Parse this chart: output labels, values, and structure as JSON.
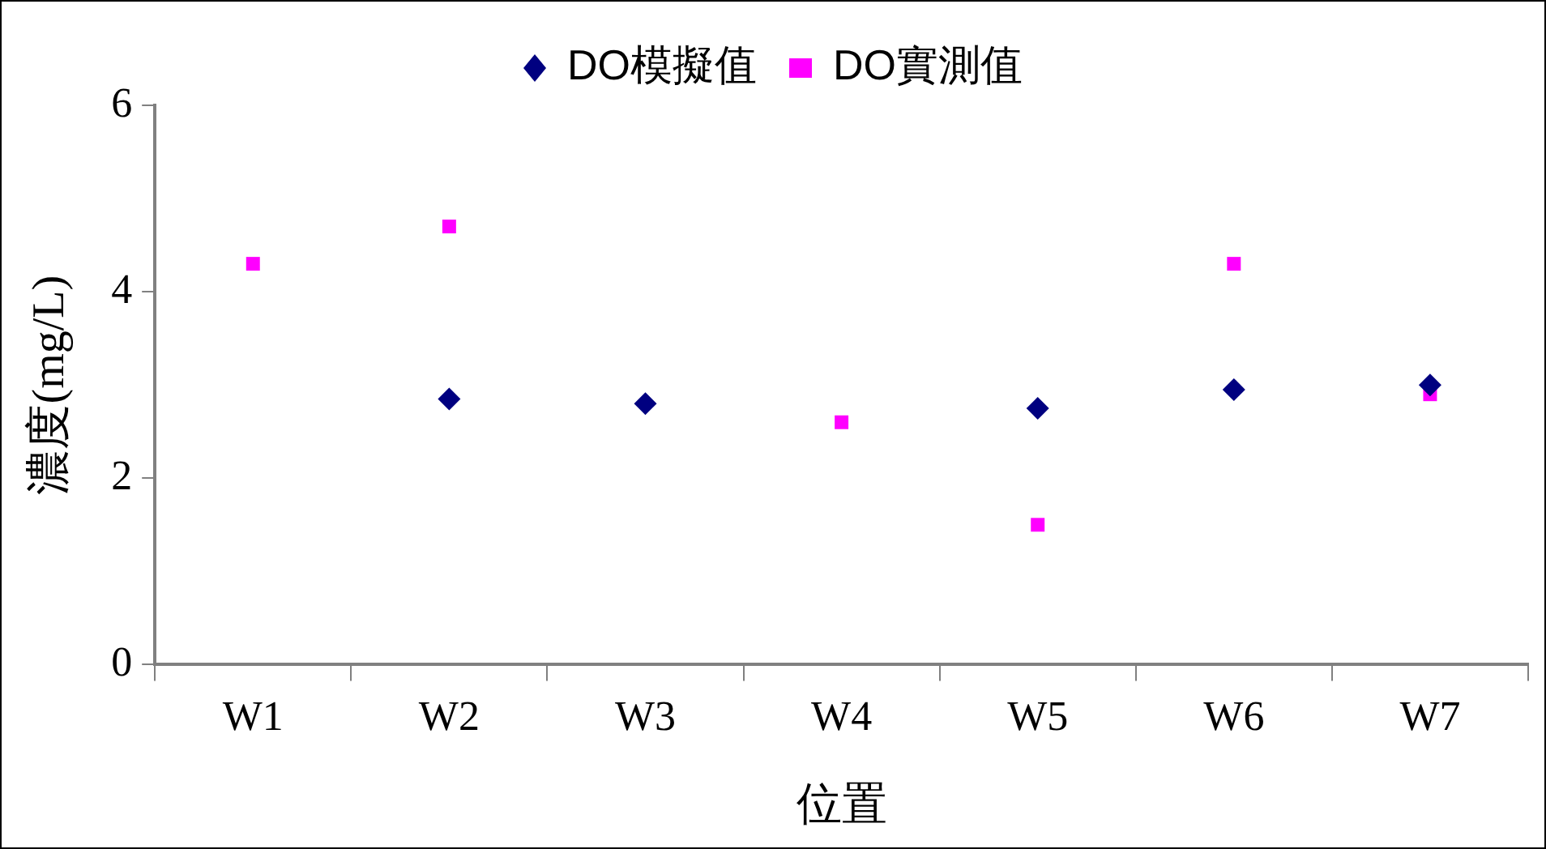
{
  "chart_data": {
    "type": "scatter",
    "xlabel": "位置",
    "ylabel": "濃度(mg/L)",
    "categories": [
      "W1",
      "W2",
      "W3",
      "W4",
      "W5",
      "W6",
      "W7"
    ],
    "series": [
      {
        "name": "DO模擬值",
        "color": "#000080",
        "marker": "diamond",
        "values": [
          null,
          2.85,
          2.8,
          null,
          2.75,
          2.95,
          3.0
        ]
      },
      {
        "name": "DO實測值",
        "color": "#ff00ff",
        "marker": "square",
        "values": [
          4.3,
          4.7,
          null,
          2.6,
          1.5,
          4.3,
          2.9
        ]
      }
    ],
    "ylim": [
      0,
      6
    ],
    "yticks": [
      0,
      2,
      4,
      6
    ],
    "grid": false,
    "legend": "top"
  }
}
